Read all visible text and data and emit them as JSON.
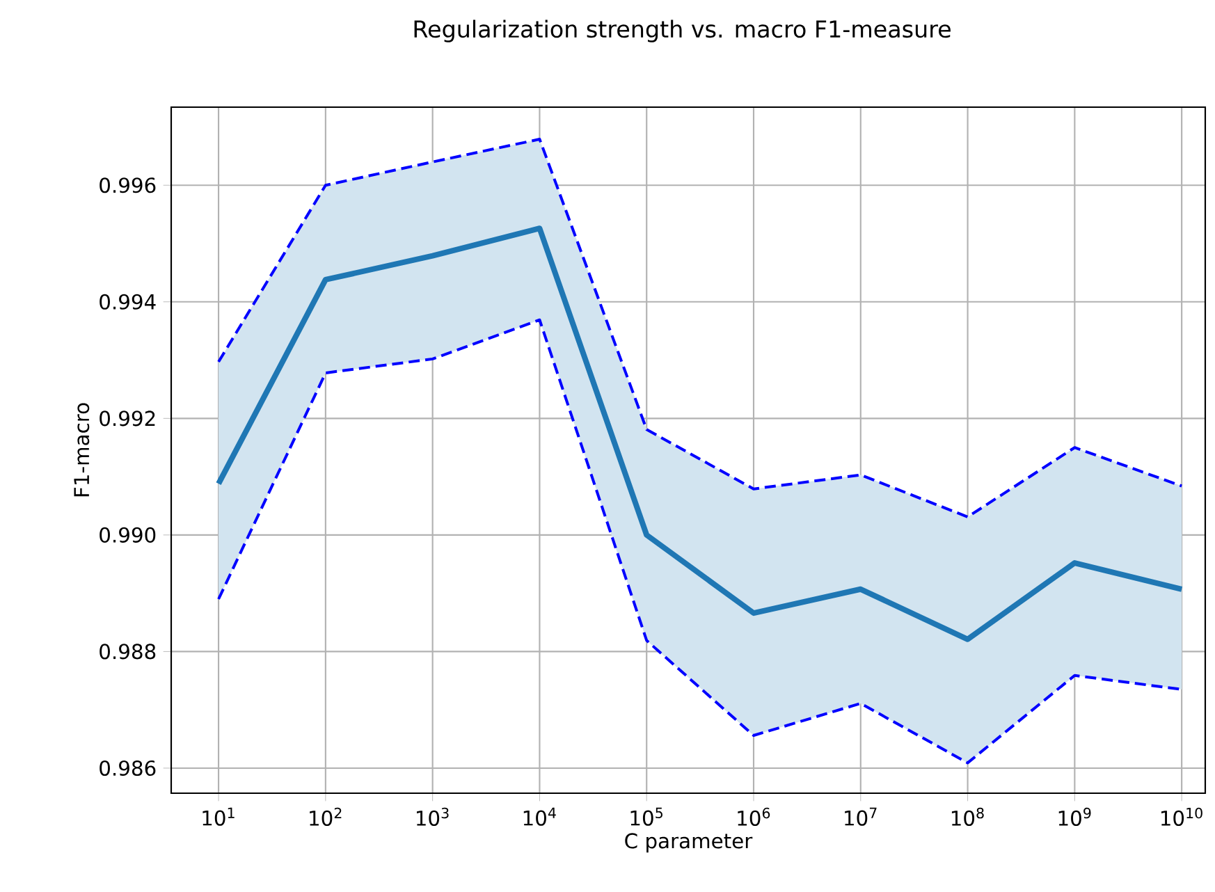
{
  "chart_data": {
    "type": "line",
    "title": "Regularization strength vs. macro F1-measure",
    "xlabel": "C parameter",
    "ylabel": "F1-macro",
    "x": [
      10,
      100,
      1000,
      10000,
      100000,
      1000000,
      10000000,
      100000000,
      1000000000,
      10000000000
    ],
    "series": [
      {
        "color": "#0000ff",
        "line_style": "dashed",
        "values": [
          0.99297,
          0.996,
          0.9964,
          0.99679,
          0.99181,
          0.99079,
          0.99103,
          0.99031,
          0.9915,
          0.99084
        ]
      },
      {
        "color": "#0000ff",
        "line_style": "dashed",
        "values": [
          0.9889,
          0.99278,
          0.99302,
          0.99369,
          0.98819,
          0.98656,
          0.98711,
          0.98609,
          0.98759,
          0.98735
        ]
      },
      {
        "color": "#1f77b4",
        "line_style": "solid",
        "values": [
          0.99088,
          0.99438,
          0.99479,
          0.99526,
          0.99,
          0.98866,
          0.98907,
          0.98821,
          0.98952,
          0.98907
        ],
        "lower": [
          0.9889,
          0.99278,
          0.99302,
          0.99369,
          0.98819,
          0.98656,
          0.98711,
          0.98609,
          0.98759,
          0.98735
        ],
        "upper": [
          0.99297,
          0.996,
          0.9964,
          0.99679,
          0.99181,
          0.99079,
          0.99103,
          0.99031,
          0.9915,
          0.99084
        ]
      }
    ],
    "log": "x",
    "grid": true,
    "marker": "none",
    "xlim": [
      3.61,
      16600000000
    ],
    "ylim": [
      0.98557,
      0.99734
    ],
    "xticks": [
      {
        "value": 10,
        "label": "10$^{1}$"
      },
      {
        "value": 100,
        "label": "10$^{2}$"
      },
      {
        "value": 1000,
        "label": "10$^{3}$"
      },
      {
        "value": 10000,
        "label": "10$^{4}$"
      },
      {
        "value": 100000,
        "label": "10$^{5}$"
      },
      {
        "value": 1000000,
        "label": "10$^{6}$"
      },
      {
        "value": 10000000,
        "label": "10$^{7}$"
      },
      {
        "value": 100000000,
        "label": "10$^{8}$"
      },
      {
        "value": 1000000000,
        "label": "10$^{9}$"
      },
      {
        "value": 10000000000,
        "label": "10$^{10}$"
      }
    ],
    "yticks": [
      {
        "value": 0.986,
        "label": "0.986"
      },
      {
        "value": 0.988,
        "label": "0.988"
      },
      {
        "value": 0.99,
        "label": "0.990"
      },
      {
        "value": 0.992,
        "label": "0.992"
      },
      {
        "value": 0.994,
        "label": "0.994"
      },
      {
        "value": 0.996,
        "label": "0.996"
      }
    ]
  }
}
